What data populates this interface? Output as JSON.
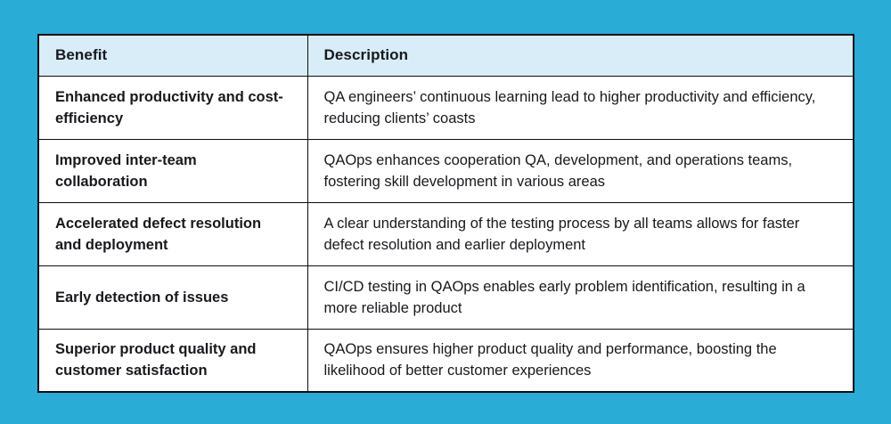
{
  "colors": {
    "page_background": "#29ACD6",
    "header_background": "#D8EDF8",
    "table_background": "#FFFFFF",
    "border": "#0B0D10",
    "text": "#17191D"
  },
  "table": {
    "headers": {
      "benefit": "Benefit",
      "description": "Description"
    },
    "rows": [
      {
        "benefit": "Enhanced productivity and cost-efficiency",
        "description": "QA engineers’ continuous learning lead to higher productivity and efficiency, reducing clients’ coasts"
      },
      {
        "benefit": "Improved inter-team collaboration",
        "description": "QAOps enhances cooperation QA, development, and operations teams, fostering skill development in various areas"
      },
      {
        "benefit": "Accelerated defect resolution and deployment",
        "description": "A clear understanding of the testing process by all teams allows for faster defect resolution and earlier deployment"
      },
      {
        "benefit": "Early detection of issues",
        "description": "CI/CD testing in QAOps enables early problem identification, resulting in a more reliable product"
      },
      {
        "benefit": "Superior product quality and customer satisfaction",
        "description": "QAOps ensures higher product quality and performance, boosting the likelihood of better customer experiences"
      }
    ]
  }
}
